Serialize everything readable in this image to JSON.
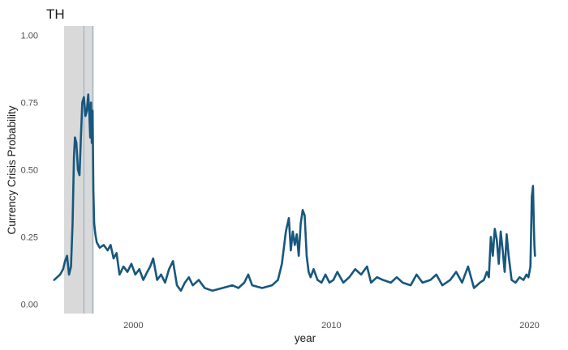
{
  "chart_data": {
    "type": "line",
    "title": "TH",
    "xlabel": "year",
    "ylabel": "Currency Crisis Probability",
    "xlim": [
      1995.6,
      2020.8
    ],
    "ylim": [
      -0.035,
      1.035
    ],
    "x_ticks": [
      {
        "value": 2000,
        "label": "2000"
      },
      {
        "value": 2010,
        "label": "2010"
      },
      {
        "value": 2020,
        "label": "2020"
      }
    ],
    "y_ticks": [
      {
        "value": 0.0,
        "label": "0.00"
      },
      {
        "value": 0.25,
        "label": "0.25"
      },
      {
        "value": 0.5,
        "label": "0.50"
      },
      {
        "value": 0.75,
        "label": "0.75"
      },
      {
        "value": 1.0,
        "label": "1.00"
      }
    ],
    "grid": false,
    "crisis_band": {
      "x_start": 1996.5,
      "x_end": 1998.0,
      "color": "#d9d9d9"
    },
    "crisis_lines": [
      {
        "x": 1997.5,
        "color": "#8fa8bc"
      },
      {
        "x": 1997.95,
        "color": "#8fa8bc"
      }
    ],
    "series": [
      {
        "color": "#17577e",
        "x": [
          1996.0,
          1996.15,
          1996.3,
          1996.45,
          1996.55,
          1996.65,
          1996.75,
          1996.85,
          1996.93,
          1997.0,
          1997.05,
          1997.12,
          1997.2,
          1997.28,
          1997.35,
          1997.42,
          1997.5,
          1997.58,
          1997.65,
          1997.72,
          1997.78,
          1997.82,
          1997.86,
          1997.9,
          1997.94,
          1997.98,
          1998.02,
          1998.08,
          1998.15,
          1998.3,
          1998.5,
          1998.7,
          1998.85,
          1999.0,
          1999.15,
          1999.3,
          1999.5,
          1999.7,
          1999.9,
          2000.1,
          2000.3,
          2000.5,
          2000.7,
          2000.85,
          2001.0,
          2001.2,
          2001.4,
          2001.6,
          2001.8,
          2002.0,
          2002.2,
          2002.4,
          2002.6,
          2002.8,
          2003.0,
          2003.3,
          2003.6,
          2004.0,
          2004.5,
          2005.0,
          2005.3,
          2005.6,
          2005.8,
          2006.0,
          2006.5,
          2007.0,
          2007.3,
          2007.5,
          2007.7,
          2007.85,
          2007.95,
          2008.05,
          2008.15,
          2008.25,
          2008.35,
          2008.45,
          2008.55,
          2008.65,
          2008.75,
          2008.85,
          2008.95,
          2009.1,
          2009.3,
          2009.5,
          2009.7,
          2009.9,
          2010.1,
          2010.3,
          2010.6,
          2010.9,
          2011.2,
          2011.5,
          2011.8,
          2012.0,
          2012.3,
          2012.6,
          2013.0,
          2013.3,
          2013.6,
          2014.0,
          2014.3,
          2014.6,
          2015.0,
          2015.3,
          2015.6,
          2016.0,
          2016.3,
          2016.6,
          2016.9,
          2017.2,
          2017.5,
          2017.7,
          2017.85,
          2017.95,
          2018.05,
          2018.15,
          2018.25,
          2018.35,
          2018.45,
          2018.55,
          2018.65,
          2018.75,
          2018.85,
          2018.95,
          2019.1,
          2019.3,
          2019.5,
          2019.7,
          2019.85,
          2019.95,
          2020.05,
          2020.12,
          2020.18,
          2020.22,
          2020.25,
          2020.28
        ],
        "y": [
          0.09,
          0.1,
          0.11,
          0.13,
          0.16,
          0.18,
          0.11,
          0.14,
          0.3,
          0.55,
          0.62,
          0.6,
          0.5,
          0.48,
          0.62,
          0.75,
          0.77,
          0.7,
          0.72,
          0.78,
          0.7,
          0.62,
          0.75,
          0.6,
          0.72,
          0.42,
          0.3,
          0.26,
          0.23,
          0.21,
          0.22,
          0.2,
          0.22,
          0.17,
          0.19,
          0.11,
          0.14,
          0.12,
          0.15,
          0.11,
          0.13,
          0.09,
          0.12,
          0.14,
          0.17,
          0.09,
          0.11,
          0.08,
          0.13,
          0.16,
          0.07,
          0.05,
          0.08,
          0.1,
          0.07,
          0.09,
          0.06,
          0.05,
          0.06,
          0.07,
          0.06,
          0.08,
          0.11,
          0.07,
          0.06,
          0.07,
          0.09,
          0.15,
          0.27,
          0.32,
          0.2,
          0.27,
          0.22,
          0.26,
          0.18,
          0.3,
          0.35,
          0.33,
          0.18,
          0.12,
          0.1,
          0.13,
          0.09,
          0.08,
          0.11,
          0.08,
          0.09,
          0.12,
          0.08,
          0.1,
          0.13,
          0.11,
          0.14,
          0.08,
          0.1,
          0.09,
          0.08,
          0.1,
          0.08,
          0.07,
          0.11,
          0.08,
          0.09,
          0.11,
          0.07,
          0.09,
          0.12,
          0.08,
          0.14,
          0.06,
          0.08,
          0.09,
          0.12,
          0.1,
          0.25,
          0.18,
          0.28,
          0.24,
          0.15,
          0.27,
          0.2,
          0.12,
          0.26,
          0.18,
          0.09,
          0.08,
          0.1,
          0.09,
          0.11,
          0.1,
          0.14,
          0.4,
          0.44,
          0.3,
          0.22,
          0.18
        ]
      }
    ]
  }
}
